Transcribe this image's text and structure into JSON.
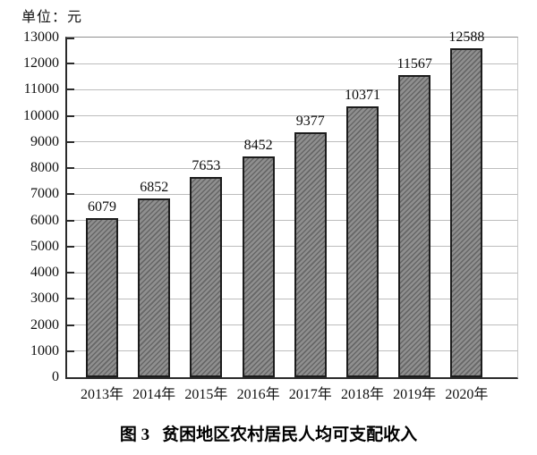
{
  "unit_label": "单位：元",
  "caption": {
    "prefix": "图 3",
    "title": "贫困地区农村居民人均可支配收入"
  },
  "chart_data": {
    "type": "bar",
    "title": "图 3 贫困地区农村居民人均可支配收入",
    "unit": "单位：元",
    "categories": [
      "2013年",
      "2014年",
      "2015年",
      "2016年",
      "2017年",
      "2018年",
      "2019年",
      "2020年"
    ],
    "values": [
      6079,
      6852,
      7653,
      8452,
      9377,
      10371,
      11567,
      12588
    ],
    "xlabel": "",
    "ylabel": "单位：元",
    "ylim": [
      0,
      13000
    ],
    "ytick_interval": 1000,
    "grid": true,
    "legend": "none",
    "bar_style": "gray-diagonal-hatch"
  },
  "colors": {
    "background": "#ffffff",
    "axis": "#2b2b2b",
    "gridline": "#bdbdbd",
    "bar_base": "#8f8f8f",
    "bar_hatch": "#666666",
    "bar_border": "#1c1c1c",
    "text": "#111111"
  }
}
